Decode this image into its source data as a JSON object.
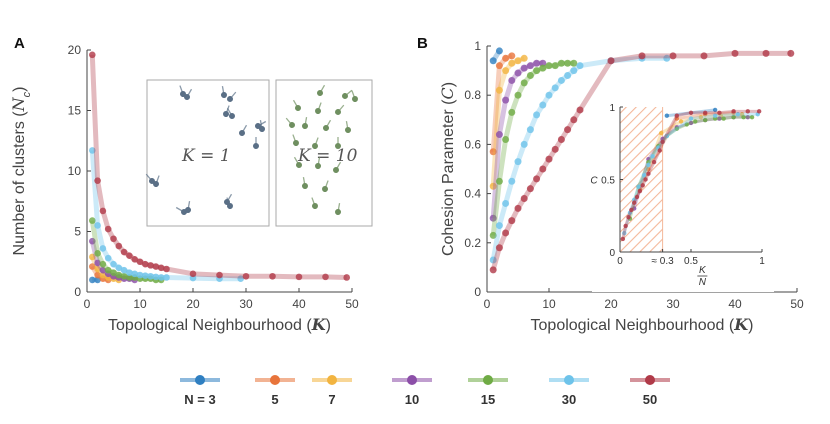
{
  "colors": {
    "3": "#2f7fc1",
    "5": "#e8743b",
    "7": "#f2b440",
    "10": "#8c4fa8",
    "15": "#6fab45",
    "30": "#6ec3ea",
    "50": "#b03a48",
    "axis": "#444444",
    "hatch": "#f4b89a",
    "agent_dark": "#5a6f86",
    "agent_green": "#6f8f60"
  },
  "legend": {
    "items": [
      {
        "key": "3",
        "label": "N = 3"
      },
      {
        "key": "5",
        "label": "5"
      },
      {
        "key": "7",
        "label": "7"
      },
      {
        "key": "10",
        "label": "10"
      },
      {
        "key": "15",
        "label": "15"
      },
      {
        "key": "30",
        "label": "30"
      },
      {
        "key": "50",
        "label": "50"
      }
    ]
  },
  "panelA": {
    "letter": "A",
    "inset_labels": [
      "K = 1",
      "K = 10"
    ]
  },
  "panelB": {
    "letter": "B",
    "inset_vline_label": "≈ 0.3"
  },
  "chart_data": [
    {
      "type": "line",
      "panel": "A",
      "title": "",
      "xlabel": "Topological Neighbourhood (K)",
      "ylabel": "Number of clusters (N_c)",
      "xlim": [
        0,
        50
      ],
      "ylim": [
        0,
        20
      ],
      "xticks": [
        0,
        10,
        20,
        30,
        40,
        50
      ],
      "yticks": [
        0,
        5,
        10,
        15,
        20
      ],
      "series": [
        {
          "name": "3",
          "x": [
            1,
            2
          ],
          "y": [
            1.0,
            1.0
          ]
        },
        {
          "name": "5",
          "x": [
            1,
            2,
            3,
            4
          ],
          "y": [
            2.1,
            1.4,
            1.1,
            1.0
          ]
        },
        {
          "name": "7",
          "x": [
            1,
            2,
            3,
            4,
            5,
            6
          ],
          "y": [
            2.9,
            1.9,
            1.4,
            1.2,
            1.1,
            1.0
          ]
        },
        {
          "name": "10",
          "x": [
            1,
            2,
            3,
            4,
            5,
            6,
            7,
            8,
            9
          ],
          "y": [
            4.2,
            2.4,
            1.8,
            1.5,
            1.3,
            1.2,
            1.1,
            1.1,
            1.0
          ]
        },
        {
          "name": "15",
          "x": [
            1,
            2,
            3,
            4,
            5,
            6,
            7,
            8,
            9,
            10,
            11,
            12,
            13,
            14
          ],
          "y": [
            5.9,
            3.2,
            2.3,
            1.8,
            1.6,
            1.4,
            1.3,
            1.2,
            1.2,
            1.1,
            1.1,
            1.1,
            1.0,
            1.0
          ]
        },
        {
          "name": "30",
          "x": [
            1,
            2,
            3,
            4,
            5,
            6,
            7,
            8,
            9,
            10,
            11,
            12,
            13,
            14,
            15,
            20,
            25,
            29
          ],
          "y": [
            11.7,
            5.5,
            3.6,
            2.8,
            2.3,
            2.0,
            1.8,
            1.6,
            1.5,
            1.4,
            1.35,
            1.3,
            1.25,
            1.2,
            1.2,
            1.15,
            1.1,
            1.1
          ]
        },
        {
          "name": "50",
          "x": [
            1,
            2,
            3,
            4,
            5,
            6,
            7,
            8,
            9,
            10,
            11,
            12,
            13,
            14,
            15,
            20,
            25,
            30,
            35,
            40,
            45,
            49
          ],
          "y": [
            19.6,
            9.2,
            6.7,
            5.2,
            4.4,
            3.8,
            3.3,
            3.0,
            2.7,
            2.5,
            2.3,
            2.2,
            2.1,
            2.0,
            1.9,
            1.5,
            1.4,
            1.3,
            1.3,
            1.25,
            1.25,
            1.2
          ]
        }
      ]
    },
    {
      "type": "line",
      "panel": "B",
      "title": "",
      "xlabel": "Topological Neighbourhood (K)",
      "ylabel": "Cohesion Parameter (C)",
      "xlim": [
        0,
        50
      ],
      "ylim": [
        0,
        1
      ],
      "xticks": [
        0,
        10,
        20,
        30,
        40,
        50
      ],
      "yticks": [
        0,
        0.2,
        0.4,
        0.6,
        0.8,
        1
      ],
      "series": [
        {
          "name": "3",
          "x": [
            1,
            2
          ],
          "y": [
            0.94,
            0.98
          ]
        },
        {
          "name": "5",
          "x": [
            1,
            2,
            3,
            4
          ],
          "y": [
            0.57,
            0.92,
            0.95,
            0.96
          ]
        },
        {
          "name": "7",
          "x": [
            1,
            2,
            3,
            4,
            5,
            6
          ],
          "y": [
            0.43,
            0.82,
            0.9,
            0.93,
            0.94,
            0.95
          ]
        },
        {
          "name": "10",
          "x": [
            1,
            2,
            3,
            4,
            5,
            6,
            7,
            8,
            9
          ],
          "y": [
            0.3,
            0.64,
            0.78,
            0.86,
            0.89,
            0.91,
            0.92,
            0.93,
            0.93
          ]
        },
        {
          "name": "15",
          "x": [
            1,
            2,
            3,
            4,
            5,
            6,
            7,
            8,
            9,
            10,
            11,
            12,
            13,
            14
          ],
          "y": [
            0.23,
            0.45,
            0.62,
            0.73,
            0.8,
            0.85,
            0.88,
            0.9,
            0.91,
            0.92,
            0.92,
            0.93,
            0.93,
            0.93
          ]
        },
        {
          "name": "30",
          "x": [
            1,
            2,
            3,
            4,
            5,
            6,
            7,
            8,
            9,
            10,
            11,
            12,
            13,
            14,
            15,
            20,
            25,
            29
          ],
          "y": [
            0.13,
            0.27,
            0.36,
            0.45,
            0.53,
            0.6,
            0.66,
            0.72,
            0.76,
            0.8,
            0.83,
            0.86,
            0.88,
            0.9,
            0.92,
            0.94,
            0.95,
            0.95
          ]
        },
        {
          "name": "50",
          "x": [
            1,
            2,
            3,
            4,
            5,
            6,
            7,
            8,
            9,
            10,
            11,
            12,
            13,
            14,
            15,
            20,
            25,
            30,
            35,
            40,
            45,
            49
          ],
          "y": [
            0.09,
            0.18,
            0.24,
            0.29,
            0.34,
            0.38,
            0.42,
            0.46,
            0.5,
            0.54,
            0.58,
            0.62,
            0.66,
            0.7,
            0.74,
            0.94,
            0.96,
            0.96,
            0.96,
            0.97,
            0.97,
            0.97
          ]
        }
      ]
    },
    {
      "type": "line",
      "panel": "B-inset",
      "xlabel": "K/N",
      "ylabel": "C",
      "xlim": [
        0,
        1
      ],
      "ylim": [
        0,
        1
      ],
      "xtick_labels": [
        "0",
        "≈ 0.3",
        "0.5",
        "1"
      ],
      "ytick_labels": [
        "0",
        "0.5",
        "1"
      ],
      "shaded_region": [
        0,
        0.3
      ],
      "series": [
        {
          "name": "3",
          "x": [
            0.33,
            0.67
          ],
          "y": [
            0.94,
            0.98
          ]
        },
        {
          "name": "5",
          "x": [
            0.2,
            0.4,
            0.6,
            0.8
          ],
          "y": [
            0.57,
            0.92,
            0.95,
            0.96
          ]
        },
        {
          "name": "7",
          "x": [
            0.14,
            0.29,
            0.43,
            0.57,
            0.71,
            0.86
          ],
          "y": [
            0.43,
            0.82,
            0.9,
            0.93,
            0.94,
            0.95
          ]
        },
        {
          "name": "10",
          "x": [
            0.1,
            0.2,
            0.3,
            0.4,
            0.5,
            0.6,
            0.7,
            0.8,
            0.9
          ],
          "y": [
            0.3,
            0.64,
            0.78,
            0.86,
            0.89,
            0.91,
            0.92,
            0.93,
            0.93
          ]
        },
        {
          "name": "15",
          "x": [
            0.07,
            0.13,
            0.2,
            0.27,
            0.33,
            0.4,
            0.47,
            0.53,
            0.6,
            0.67,
            0.73,
            0.8,
            0.87,
            0.93
          ],
          "y": [
            0.23,
            0.45,
            0.62,
            0.73,
            0.8,
            0.85,
            0.88,
            0.9,
            0.91,
            0.92,
            0.92,
            0.93,
            0.93,
            0.93
          ]
        },
        {
          "name": "30",
          "x": [
            0.03,
            0.07,
            0.1,
            0.13,
            0.17,
            0.2,
            0.23,
            0.27,
            0.3,
            0.33,
            0.5,
            0.67,
            0.83,
            0.97
          ],
          "y": [
            0.13,
            0.27,
            0.36,
            0.45,
            0.53,
            0.6,
            0.66,
            0.72,
            0.76,
            0.8,
            0.92,
            0.94,
            0.95,
            0.95
          ]
        },
        {
          "name": "50",
          "x": [
            0.02,
            0.04,
            0.06,
            0.08,
            0.1,
            0.12,
            0.14,
            0.16,
            0.18,
            0.2,
            0.24,
            0.28,
            0.3,
            0.4,
            0.5,
            0.6,
            0.7,
            0.8,
            0.9,
            0.98
          ],
          "y": [
            0.09,
            0.18,
            0.24,
            0.29,
            0.34,
            0.38,
            0.42,
            0.46,
            0.5,
            0.54,
            0.62,
            0.7,
            0.76,
            0.94,
            0.96,
            0.96,
            0.96,
            0.97,
            0.97,
            0.97
          ]
        }
      ]
    }
  ]
}
